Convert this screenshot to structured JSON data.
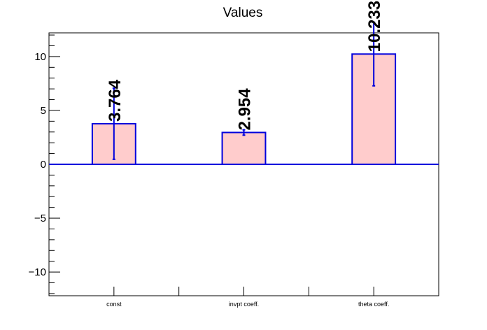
{
  "chart_data": {
    "type": "bar",
    "title": "Values",
    "xlabel": "",
    "ylabel": "",
    "categories": [
      "const",
      "invpt coeff.",
      "theta coeff."
    ],
    "values": [
      3.764,
      2.954,
      10.233
    ],
    "errors": [
      3.3,
      0.25,
      2.95
    ],
    "value_labels": [
      "3.764",
      "2.954",
      "10.233"
    ],
    "ylim": [
      -12.2,
      12.2
    ],
    "yticks": [
      -10,
      -5,
      0,
      5,
      10
    ],
    "ytick_labels": [
      "−10",
      "−5",
      "0",
      "5",
      "10"
    ],
    "grid": false,
    "colors": {
      "bar_fill": "#ffcccc",
      "bar_stroke": "#0000dd",
      "error_bar": "#0000dd",
      "zero_line": "#0000dd",
      "axis": "#000000",
      "label": "#000000"
    }
  }
}
